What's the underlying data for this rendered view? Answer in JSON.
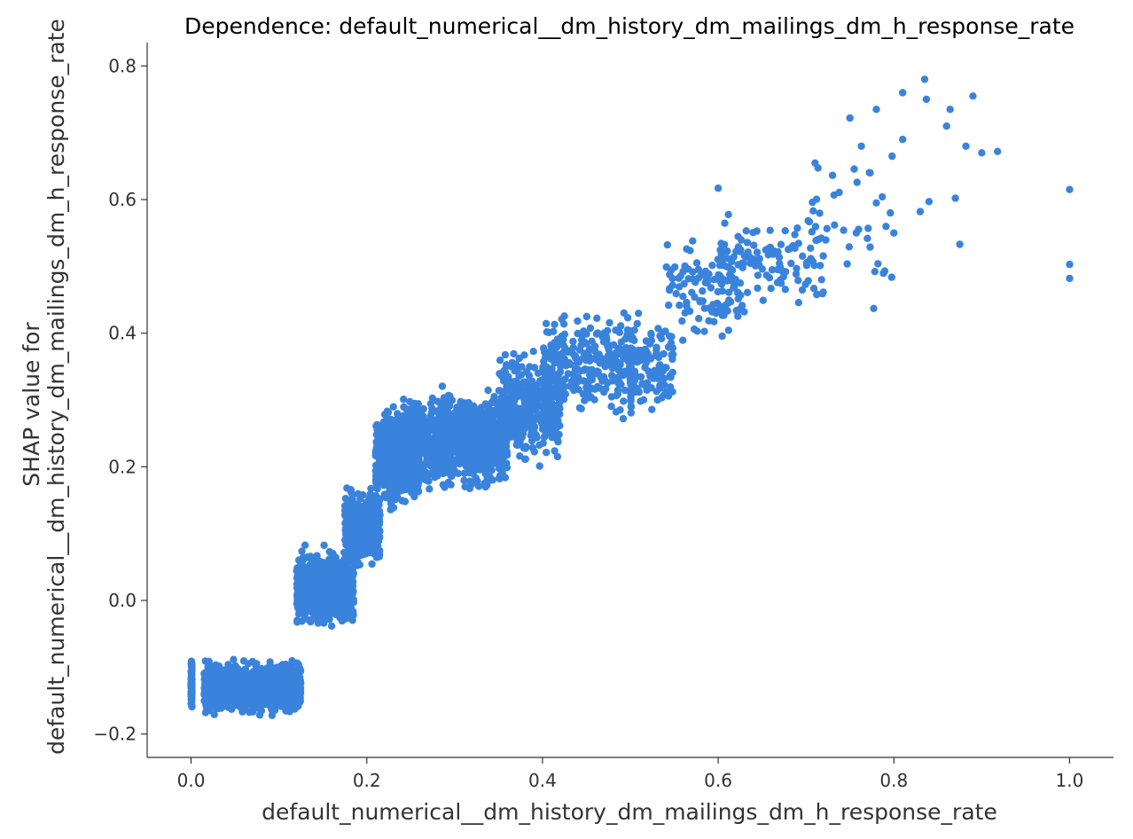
{
  "chart_data": {
    "type": "scatter",
    "title": "Dependence: default_numerical__dm_history_dm_mailings_dm_h_response_rate",
    "xlabel": "default_numerical__dm_history_dm_mailings_dm_h_response_rate",
    "ylabel_line1": "SHAP value for",
    "ylabel_line2": "default_numerical__dm_history_dm_mailings_dm_h_response_rate",
    "xlim": [
      -0.05,
      1.05
    ],
    "ylim": [
      -0.235,
      0.835
    ],
    "xticks": [
      0.0,
      0.2,
      0.4,
      0.6,
      0.8,
      1.0
    ],
    "xtick_labels": [
      "0.0",
      "0.2",
      "0.4",
      "0.6",
      "0.8",
      "1.0"
    ],
    "yticks": [
      -0.2,
      0.0,
      0.2,
      0.4,
      0.6,
      0.8
    ],
    "ytick_labels": [
      "−0.2",
      "0.0",
      "0.2",
      "0.4",
      "0.6",
      "0.8"
    ],
    "grid": false,
    "legend": "none",
    "marker_color": "#3a83dc",
    "axis_color": "#333333",
    "clusters": [
      {
        "x": [
          0.0,
          0.001
        ],
        "y": [
          -0.175,
          -0.075
        ],
        "n": 70
      },
      {
        "x": [
          0.015,
          0.125
        ],
        "y": [
          -0.175,
          -0.085
        ],
        "n": 1400
      },
      {
        "x": [
          0.12,
          0.185
        ],
        "y": [
          -0.05,
          0.085
        ],
        "n": 900
      },
      {
        "x": [
          0.175,
          0.215
        ],
        "y": [
          0.04,
          0.175
        ],
        "n": 450
      },
      {
        "x": [
          0.21,
          0.26
        ],
        "y": [
          0.13,
          0.3
        ],
        "n": 700
      },
      {
        "x": [
          0.24,
          0.36
        ],
        "y": [
          0.15,
          0.33
        ],
        "n": 900
      },
      {
        "x": [
          0.35,
          0.42
        ],
        "y": [
          0.19,
          0.39
        ],
        "n": 380
      },
      {
        "x": [
          0.4,
          0.55
        ],
        "y": [
          0.26,
          0.45
        ],
        "n": 380
      },
      {
        "x": [
          0.5,
          0.501
        ],
        "y": [
          0.23,
          0.44
        ],
        "n": 40
      },
      {
        "x": [
          0.54,
          0.63
        ],
        "y": [
          0.37,
          0.55
        ],
        "n": 110
      },
      {
        "x": [
          0.6,
          0.72
        ],
        "y": [
          0.41,
          0.6
        ],
        "n": 110
      },
      {
        "x": [
          0.7,
          0.8
        ],
        "y": [
          0.43,
          0.7
        ],
        "n": 35
      }
    ],
    "points": [
      {
        "x": 0.835,
        "y": 0.78
      },
      {
        "x": 0.837,
        "y": 0.75
      },
      {
        "x": 0.89,
        "y": 0.755
      },
      {
        "x": 0.81,
        "y": 0.76
      },
      {
        "x": 0.864,
        "y": 0.735
      },
      {
        "x": 0.86,
        "y": 0.71
      },
      {
        "x": 0.78,
        "y": 0.735
      },
      {
        "x": 0.75,
        "y": 0.722
      },
      {
        "x": 0.81,
        "y": 0.69
      },
      {
        "x": 0.798,
        "y": 0.665
      },
      {
        "x": 0.882,
        "y": 0.68
      },
      {
        "x": 0.9,
        "y": 0.67
      },
      {
        "x": 0.918,
        "y": 0.672
      },
      {
        "x": 1.0,
        "y": 0.615
      },
      {
        "x": 1.0,
        "y": 0.503
      },
      {
        "x": 1.0,
        "y": 0.482
      },
      {
        "x": 0.87,
        "y": 0.602
      },
      {
        "x": 0.84,
        "y": 0.597
      },
      {
        "x": 0.83,
        "y": 0.582
      },
      {
        "x": 0.875,
        "y": 0.533
      },
      {
        "x": 0.777,
        "y": 0.437
      },
      {
        "x": 0.8,
        "y": 0.55
      },
      {
        "x": 0.796,
        "y": 0.58
      },
      {
        "x": 0.78,
        "y": 0.595
      },
      {
        "x": 0.6,
        "y": 0.617
      },
      {
        "x": 0.773,
        "y": 0.64
      },
      {
        "x": 0.763,
        "y": 0.68
      }
    ]
  }
}
